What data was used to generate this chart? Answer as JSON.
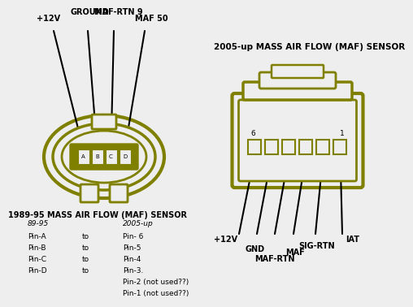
{
  "bg_color": "#eeeeee",
  "olive": "#808000",
  "black": "#000000",
  "white": "#eeeeee",
  "title1": "1989-95 MASS AIR FLOW (MAF) SENSOR",
  "title2": "2005-up MASS AIR FLOW (MAF) SENSOR",
  "wire_labels_left": [
    "+12V",
    "GROUND",
    "MAF-RTN 9",
    "MAF 50"
  ],
  "pins_left": [
    "A",
    "B",
    "C",
    "D"
  ],
  "wire_labels_right": [
    "+12V",
    "GND",
    "MAF-RTN",
    "MAF",
    "SIG-RTN",
    "IAT"
  ],
  "pin_numbers_right": [
    "6",
    "1"
  ],
  "table_col1_header": "89-95",
  "table_col3_header": "2005-up",
  "table_rows": [
    [
      "Pin-A",
      "to",
      "Pin- 6"
    ],
    [
      "Pin-B",
      "to",
      "Pin-5"
    ],
    [
      "Pin-C",
      "to",
      "Pin-4"
    ],
    [
      "Pin-D",
      "to",
      "Pin-3."
    ],
    [
      "",
      "",
      "Pin-2 (not used??)"
    ],
    [
      "",
      "",
      "Pin-1 (not used??)"
    ]
  ]
}
